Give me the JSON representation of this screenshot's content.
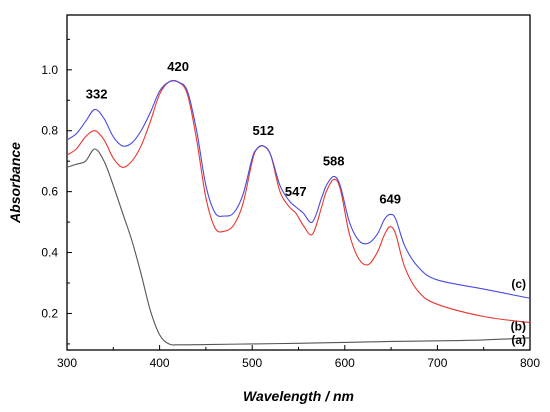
{
  "chart_data": {
    "type": "line",
    "xlabel": "Wavelength / nm",
    "ylabel": "Absorbance",
    "xlim": [
      300,
      800
    ],
    "ylim": [
      0.08,
      1.18
    ],
    "x_ticks": [
      300,
      400,
      500,
      600,
      700,
      800
    ],
    "y_ticks": [
      0.2,
      0.4,
      0.6,
      0.8,
      1.0
    ],
    "x_tick_labels": [
      "300",
      "400",
      "500",
      "600",
      "700",
      "800"
    ],
    "y_tick_labels": [
      "0.2",
      "0.4",
      "0.6",
      "0.8",
      "1.0"
    ],
    "grid": false,
    "series": [
      {
        "name": "(a)",
        "color": "#555555",
        "x": [
          300,
          310,
          320,
          330,
          340,
          350,
          360,
          370,
          380,
          390,
          400,
          410,
          420,
          450,
          500,
          550,
          600,
          650,
          700,
          750,
          800
        ],
        "y": [
          0.68,
          0.69,
          0.7,
          0.74,
          0.7,
          0.62,
          0.53,
          0.44,
          0.33,
          0.21,
          0.13,
          0.1,
          0.097,
          0.098,
          0.1,
          0.102,
          0.105,
          0.108,
          0.11,
          0.113,
          0.12
        ]
      },
      {
        "name": "(b)",
        "color": "#e8382f",
        "x": [
          300,
          310,
          320,
          330,
          340,
          350,
          360,
          370,
          380,
          390,
          400,
          410,
          420,
          430,
          440,
          450,
          460,
          470,
          480,
          490,
          500,
          505,
          512,
          520,
          530,
          540,
          547,
          555,
          565,
          575,
          580,
          588,
          595,
          605,
          615,
          625,
          635,
          643,
          649,
          655,
          665,
          680,
          700,
          750,
          800
        ],
        "y": [
          0.72,
          0.74,
          0.78,
          0.8,
          0.77,
          0.71,
          0.68,
          0.7,
          0.75,
          0.83,
          0.92,
          0.96,
          0.96,
          0.92,
          0.77,
          0.58,
          0.48,
          0.47,
          0.49,
          0.56,
          0.7,
          0.74,
          0.75,
          0.72,
          0.6,
          0.55,
          0.53,
          0.49,
          0.46,
          0.55,
          0.6,
          0.64,
          0.61,
          0.46,
          0.38,
          0.36,
          0.4,
          0.46,
          0.485,
          0.46,
          0.35,
          0.27,
          0.23,
          0.19,
          0.17
        ]
      },
      {
        "name": "(c)",
        "color": "#4a4ae0",
        "x": [
          300,
          310,
          320,
          330,
          340,
          350,
          360,
          370,
          380,
          390,
          400,
          410,
          420,
          430,
          440,
          450,
          460,
          470,
          480,
          490,
          500,
          505,
          512,
          520,
          530,
          540,
          547,
          555,
          565,
          575,
          580,
          588,
          595,
          605,
          615,
          625,
          635,
          643,
          649,
          655,
          665,
          680,
          700,
          750,
          800
        ],
        "y": [
          0.77,
          0.79,
          0.83,
          0.87,
          0.84,
          0.78,
          0.75,
          0.76,
          0.8,
          0.86,
          0.93,
          0.96,
          0.96,
          0.93,
          0.8,
          0.62,
          0.53,
          0.52,
          0.53,
          0.59,
          0.71,
          0.74,
          0.75,
          0.72,
          0.62,
          0.57,
          0.55,
          0.53,
          0.5,
          0.58,
          0.62,
          0.65,
          0.62,
          0.5,
          0.44,
          0.43,
          0.46,
          0.51,
          0.525,
          0.51,
          0.42,
          0.35,
          0.31,
          0.28,
          0.25
        ]
      }
    ],
    "peak_labels": [
      {
        "text": "332",
        "x": 332,
        "y": 0.87
      },
      {
        "text": "420",
        "x": 420,
        "y": 0.96
      },
      {
        "text": "512",
        "x": 512,
        "y": 0.75
      },
      {
        "text": "547",
        "x": 547,
        "y": 0.55
      },
      {
        "text": "588",
        "x": 588,
        "y": 0.65
      },
      {
        "text": "649",
        "x": 649,
        "y": 0.525
      }
    ],
    "curve_labels": [
      {
        "text": "(c)",
        "series": "(c)"
      },
      {
        "text": "(b)",
        "series": "(b)"
      },
      {
        "text": "(a)",
        "series": "(a)"
      }
    ]
  }
}
